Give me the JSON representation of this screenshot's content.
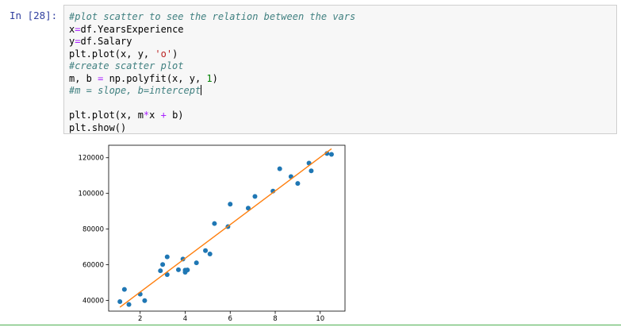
{
  "cell": {
    "prompt": "In [28]:",
    "code_lines": [
      [
        {
          "t": "#plot scatter to see the relation between the vars",
          "c": "cm"
        }
      ],
      [
        {
          "t": "x"
        },
        {
          "t": "=",
          "c": "op"
        },
        {
          "t": "df.YearsExperience"
        }
      ],
      [
        {
          "t": "y"
        },
        {
          "t": "=",
          "c": "op"
        },
        {
          "t": "df.Salary"
        }
      ],
      [
        {
          "t": "plt.plot(x, y, "
        },
        {
          "t": "'o'",
          "c": "str"
        },
        {
          "t": ")"
        }
      ],
      [
        {
          "t": "#create scatter plot",
          "c": "cm"
        }
      ],
      [
        {
          "t": "m, b "
        },
        {
          "t": "=",
          "c": "op"
        },
        {
          "t": " np.polyfit(x, y, "
        },
        {
          "t": "1",
          "c": "num"
        },
        {
          "t": ")"
        }
      ],
      [
        {
          "t": "#m = slope, b=intercept",
          "c": "cm",
          "cursor": true
        }
      ],
      [
        {
          "t": ""
        }
      ],
      [
        {
          "t": "plt.plot(x, m"
        },
        {
          "t": "*",
          "c": "op"
        },
        {
          "t": "x "
        },
        {
          "t": "+",
          "c": "op"
        },
        {
          "t": " b)"
        }
      ],
      [
        {
          "t": "plt.show()"
        }
      ]
    ]
  },
  "chart_data": {
    "type": "scatter",
    "title": "",
    "xlabel": "",
    "ylabel": "",
    "xlim": [
      0.6,
      11.1
    ],
    "ylim": [
      34000,
      127000
    ],
    "x_ticks": [
      2,
      4,
      6,
      8,
      10
    ],
    "y_ticks": [
      40000,
      60000,
      80000,
      100000,
      120000
    ],
    "y_tick_labels": [
      "40000",
      "60000",
      "80000",
      "100000",
      "120000"
    ],
    "grid": false,
    "series": [
      {
        "style": "points",
        "color": "#1f77b4",
        "x": [
          1.1,
          1.3,
          1.5,
          2.0,
          2.2,
          2.9,
          3.0,
          3.2,
          3.2,
          3.7,
          3.9,
          4.0,
          4.0,
          4.1,
          4.5,
          4.9,
          5.1,
          5.3,
          5.9,
          6.0,
          6.8,
          7.1,
          7.9,
          8.2,
          8.7,
          9.0,
          9.5,
          9.6,
          10.3,
          10.5
        ],
        "y": [
          39343,
          46205,
          37731,
          43525,
          39891,
          56642,
          60150,
          54445,
          64445,
          57189,
          63218,
          55794,
          56957,
          57081,
          61111,
          67938,
          66029,
          83088,
          81363,
          93940,
          91738,
          98273,
          101302,
          113812,
          109431,
          105582,
          116969,
          112635,
          122391,
          121872
        ]
      },
      {
        "style": "line",
        "color": "#ff7f0e",
        "slope": 9450,
        "intercept": 25792,
        "x_range": [
          1.1,
          10.5
        ]
      }
    ]
  }
}
